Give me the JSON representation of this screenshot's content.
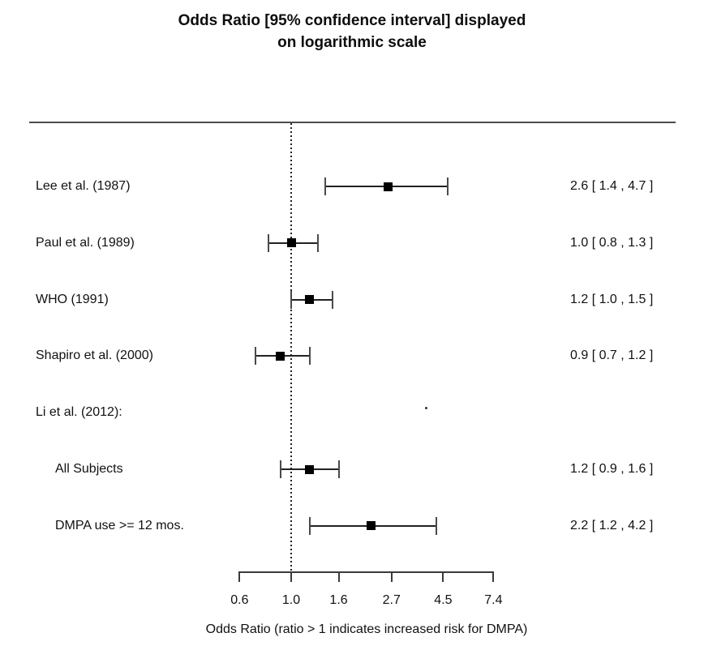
{
  "title": {
    "line1": "Odds Ratio [95% confidence interval] displayed",
    "line2": "on logarithmic scale"
  },
  "chart_data": {
    "type": "forest",
    "title": "Odds Ratio [95% confidence interval] displayed on logarithmic scale",
    "scale": "logarithmic",
    "reference_line": 1.0,
    "x_axis": {
      "label": "Odds Ratio (ratio > 1 indicates increased risk for DMPA)",
      "ticks": [
        0.6,
        1.0,
        1.6,
        2.7,
        4.5,
        7.4
      ],
      "tick_labels": [
        "0.6",
        "1.0",
        "1.6",
        "2.7",
        "4.5",
        "7.4"
      ],
      "range": [
        0.6,
        7.4
      ]
    },
    "rows": [
      {
        "label": "Lee et al. (1987)",
        "indent": false,
        "estimate": 2.6,
        "ci_low": 1.4,
        "ci_high": 4.7,
        "value_text": "2.6 [ 1.4 , 4.7 ]"
      },
      {
        "label": "Paul et al. (1989)",
        "indent": false,
        "estimate": 1.0,
        "ci_low": 0.8,
        "ci_high": 1.3,
        "value_text": "1.0 [ 0.8 , 1.3 ]"
      },
      {
        "label": "WHO (1991)",
        "indent": false,
        "estimate": 1.2,
        "ci_low": 1.0,
        "ci_high": 1.5,
        "value_text": "1.2 [ 1.0 , 1.5 ]"
      },
      {
        "label": "Shapiro et al. (2000)",
        "indent": false,
        "estimate": 0.9,
        "ci_low": 0.7,
        "ci_high": 1.2,
        "value_text": "0.9 [ 0.7 , 1.2 ]"
      },
      {
        "label": "Li et al. (2012):",
        "indent": false,
        "estimate": null,
        "ci_low": null,
        "ci_high": null,
        "value_text": ""
      },
      {
        "label": "All Subjects",
        "indent": true,
        "estimate": 1.2,
        "ci_low": 0.9,
        "ci_high": 1.6,
        "value_text": "1.2 [ 0.9 , 1.6 ]"
      },
      {
        "label": "DMPA use >= 12 mos.",
        "indent": true,
        "estimate": 2.2,
        "ci_low": 1.2,
        "ci_high": 4.2,
        "value_text": "2.2 [ 1.2 , 4.2 ]"
      }
    ],
    "stray_dot": {
      "approx_or": 3.8,
      "row": 4
    },
    "legend_position": "none",
    "grid": false
  },
  "colors": {
    "text": "#111111",
    "marker": "#000000",
    "line": "#222222",
    "separator": "#4d4d4d",
    "background": "#ffffff"
  }
}
